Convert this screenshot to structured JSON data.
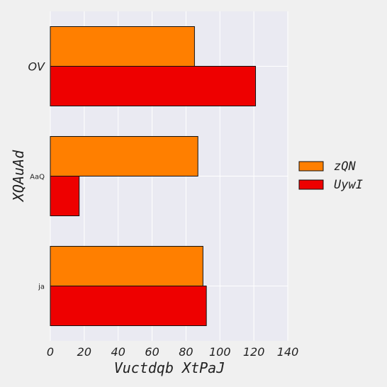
{
  "chart_data": {
    "type": "bar",
    "orientation": "horizontal",
    "categories": [
      "ja",
      "AaQ",
      "OV"
    ],
    "series": [
      {
        "name": "zQN",
        "values": [
          90,
          87,
          85
        ],
        "color": "#ff7f00"
      },
      {
        "name": "UywI",
        "values": [
          92,
          17,
          121
        ],
        "color": "#ee0000"
      }
    ],
    "xlabel": "Vuctdqb XtPaJ",
    "ylabel": "XQAuAd",
    "xlim": [
      0,
      140
    ],
    "xticks": [
      0,
      20,
      40,
      60,
      80,
      100,
      120,
      140
    ],
    "grid": true,
    "legend_position": "right",
    "background": "#eaeaf2"
  }
}
